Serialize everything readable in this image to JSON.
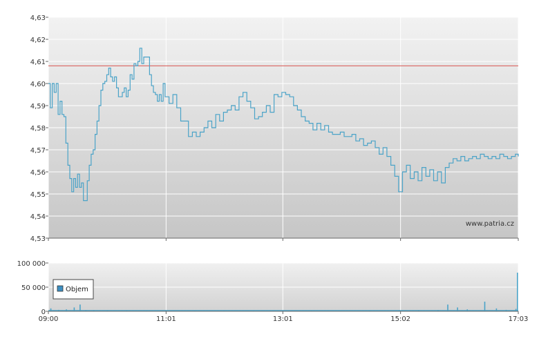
{
  "watermark": "www.patria.cz",
  "colors": {
    "series": "#4aa3c8",
    "reference": "#d9534f",
    "legend_swatch": "#3d8fc2",
    "grid": "#ffffff",
    "plot_top": "#f0f0f0",
    "plot_bottom": "#c8c8c8"
  },
  "chart_data": [
    {
      "type": "line",
      "title": "",
      "xlabel": "",
      "ylabel": "",
      "ylim": [
        4.53,
        4.63
      ],
      "y_ticks": [
        "4,53",
        "4,54",
        "4,55",
        "4,56",
        "4,57",
        "4,58",
        "4,59",
        "4,60",
        "4,61",
        "4,62",
        "4,63"
      ],
      "x_ticks": [
        "09:00",
        "11:01",
        "13:01",
        "15:02",
        "17:03"
      ],
      "reference_line": 4.608,
      "grid": true,
      "series": [
        {
          "name": "",
          "points": [
            [
              "09:00",
              4.6
            ],
            [
              "09:02",
              4.589
            ],
            [
              "09:04",
              4.6
            ],
            [
              "09:06",
              4.596
            ],
            [
              "09:08",
              4.6
            ],
            [
              "09:10",
              4.586
            ],
            [
              "09:12",
              4.592
            ],
            [
              "09:14",
              4.586
            ],
            [
              "09:16",
              4.585
            ],
            [
              "09:18",
              4.573
            ],
            [
              "09:20",
              4.563
            ],
            [
              "09:22",
              4.557
            ],
            [
              "09:24",
              4.551
            ],
            [
              "09:26",
              4.557
            ],
            [
              "09:28",
              4.553
            ],
            [
              "09:30",
              4.559
            ],
            [
              "09:32",
              4.553
            ],
            [
              "09:34",
              4.555
            ],
            [
              "09:36",
              4.547
            ],
            [
              "09:38",
              4.547
            ],
            [
              "09:40",
              4.556
            ],
            [
              "09:42",
              4.563
            ],
            [
              "09:44",
              4.568
            ],
            [
              "09:46",
              4.57
            ],
            [
              "09:48",
              4.577
            ],
            [
              "09:50",
              4.583
            ],
            [
              "09:52",
              4.59
            ],
            [
              "09:54",
              4.597
            ],
            [
              "09:56",
              4.6
            ],
            [
              "09:58",
              4.601
            ],
            [
              "10:00",
              4.604
            ],
            [
              "10:02",
              4.607
            ],
            [
              "10:04",
              4.603
            ],
            [
              "10:06",
              4.601
            ],
            [
              "10:08",
              4.603
            ],
            [
              "10:10",
              4.598
            ],
            [
              "10:12",
              4.594
            ],
            [
              "10:14",
              4.594
            ],
            [
              "10:16",
              4.596
            ],
            [
              "10:18",
              4.598
            ],
            [
              "10:20",
              4.594
            ],
            [
              "10:22",
              4.597
            ],
            [
              "10:24",
              4.604
            ],
            [
              "10:26",
              4.602
            ],
            [
              "10:28",
              4.609
            ],
            [
              "10:30",
              4.608
            ],
            [
              "10:32",
              4.61
            ],
            [
              "10:34",
              4.616
            ],
            [
              "10:36",
              4.609
            ],
            [
              "10:38",
              4.612
            ],
            [
              "10:40",
              4.612
            ],
            [
              "10:42",
              4.612
            ],
            [
              "10:44",
              4.604
            ],
            [
              "10:46",
              4.599
            ],
            [
              "10:48",
              4.596
            ],
            [
              "10:50",
              4.595
            ],
            [
              "10:52",
              4.592
            ],
            [
              "10:54",
              4.595
            ],
            [
              "10:56",
              4.592
            ],
            [
              "10:58",
              4.6
            ],
            [
              "11:00",
              4.594
            ],
            [
              "11:04",
              4.591
            ],
            [
              "11:08",
              4.595
            ],
            [
              "11:12",
              4.589
            ],
            [
              "11:16",
              4.583
            ],
            [
              "11:20",
              4.583
            ],
            [
              "11:24",
              4.576
            ],
            [
              "11:28",
              4.578
            ],
            [
              "11:32",
              4.576
            ],
            [
              "11:36",
              4.578
            ],
            [
              "11:40",
              4.58
            ],
            [
              "11:44",
              4.583
            ],
            [
              "11:48",
              4.58
            ],
            [
              "11:52",
              4.586
            ],
            [
              "11:56",
              4.583
            ],
            [
              "12:00",
              4.587
            ],
            [
              "12:04",
              4.588
            ],
            [
              "12:08",
              4.59
            ],
            [
              "12:12",
              4.588
            ],
            [
              "12:16",
              4.594
            ],
            [
              "12:20",
              4.596
            ],
            [
              "12:24",
              4.592
            ],
            [
              "12:28",
              4.589
            ],
            [
              "12:32",
              4.584
            ],
            [
              "12:36",
              4.585
            ],
            [
              "12:40",
              4.587
            ],
            [
              "12:44",
              4.59
            ],
            [
              "12:48",
              4.587
            ],
            [
              "12:52",
              4.595
            ],
            [
              "12:56",
              4.594
            ],
            [
              "13:00",
              4.596
            ],
            [
              "13:04",
              4.595
            ],
            [
              "13:08",
              4.594
            ],
            [
              "13:12",
              4.59
            ],
            [
              "13:16",
              4.588
            ],
            [
              "13:20",
              4.585
            ],
            [
              "13:24",
              4.583
            ],
            [
              "13:28",
              4.582
            ],
            [
              "13:32",
              4.579
            ],
            [
              "13:36",
              4.582
            ],
            [
              "13:40",
              4.579
            ],
            [
              "13:44",
              4.581
            ],
            [
              "13:48",
              4.578
            ],
            [
              "13:52",
              4.577
            ],
            [
              "13:56",
              4.577
            ],
            [
              "14:00",
              4.578
            ],
            [
              "14:04",
              4.576
            ],
            [
              "14:08",
              4.576
            ],
            [
              "14:12",
              4.577
            ],
            [
              "14:16",
              4.574
            ],
            [
              "14:20",
              4.575
            ],
            [
              "14:24",
              4.572
            ],
            [
              "14:28",
              4.573
            ],
            [
              "14:32",
              4.574
            ],
            [
              "14:36",
              4.571
            ],
            [
              "14:40",
              4.568
            ],
            [
              "14:44",
              4.571
            ],
            [
              "14:48",
              4.567
            ],
            [
              "14:52",
              4.563
            ],
            [
              "14:56",
              4.558
            ],
            [
              "15:00",
              4.551
            ],
            [
              "15:04",
              4.56
            ],
            [
              "15:08",
              4.563
            ],
            [
              "15:12",
              4.557
            ],
            [
              "15:16",
              4.56
            ],
            [
              "15:20",
              4.556
            ],
            [
              "15:24",
              4.562
            ],
            [
              "15:28",
              4.558
            ],
            [
              "15:32",
              4.561
            ],
            [
              "15:36",
              4.556
            ],
            [
              "15:40",
              4.56
            ],
            [
              "15:44",
              4.555
            ],
            [
              "15:48",
              4.562
            ],
            [
              "15:52",
              4.564
            ],
            [
              "15:56",
              4.566
            ],
            [
              "16:00",
              4.565
            ],
            [
              "16:04",
              4.567
            ],
            [
              "16:08",
              4.565
            ],
            [
              "16:12",
              4.566
            ],
            [
              "16:16",
              4.567
            ],
            [
              "16:20",
              4.566
            ],
            [
              "16:24",
              4.568
            ],
            [
              "16:28",
              4.567
            ],
            [
              "16:32",
              4.566
            ],
            [
              "16:36",
              4.567
            ],
            [
              "16:40",
              4.566
            ],
            [
              "16:44",
              4.568
            ],
            [
              "16:48",
              4.567
            ],
            [
              "16:52",
              4.566
            ],
            [
              "16:56",
              4.567
            ],
            [
              "17:00",
              4.568
            ],
            [
              "17:03",
              4.567
            ]
          ]
        }
      ]
    },
    {
      "type": "bar",
      "title": "",
      "ylim": [
        0,
        100000
      ],
      "y_ticks": [
        "0",
        "50 000",
        "100 000"
      ],
      "x_ticks": [
        "09:00",
        "11:01",
        "13:01",
        "15:02",
        "17:03"
      ],
      "legend": [
        "Objem"
      ],
      "legend_position": "left",
      "series": [
        {
          "name": "Objem",
          "points": [
            [
              "09:02",
              6000
            ],
            [
              "09:10",
              3000
            ],
            [
              "09:18",
              4000
            ],
            [
              "09:26",
              8000
            ],
            [
              "09:32",
              14000
            ],
            [
              "09:38",
              2500
            ],
            [
              "09:46",
              2000
            ],
            [
              "10:00",
              1500
            ],
            [
              "10:20",
              1500
            ],
            [
              "10:40",
              1200
            ],
            [
              "11:00",
              1500
            ],
            [
              "11:30",
              1200
            ],
            [
              "12:00",
              1200
            ],
            [
              "12:30",
              1200
            ],
            [
              "13:00",
              1200
            ],
            [
              "13:30",
              1200
            ],
            [
              "14:00",
              1200
            ],
            [
              "14:30",
              1500
            ],
            [
              "15:00",
              2000
            ],
            [
              "15:20",
              2000
            ],
            [
              "15:40",
              2500
            ],
            [
              "15:50",
              14000
            ],
            [
              "16:00",
              8000
            ],
            [
              "16:10",
              4000
            ],
            [
              "16:28",
              20000
            ],
            [
              "16:40",
              6000
            ],
            [
              "16:50",
              3000
            ],
            [
              "17:00",
              5000
            ],
            [
              "17:02",
              80000
            ]
          ]
        }
      ]
    }
  ]
}
